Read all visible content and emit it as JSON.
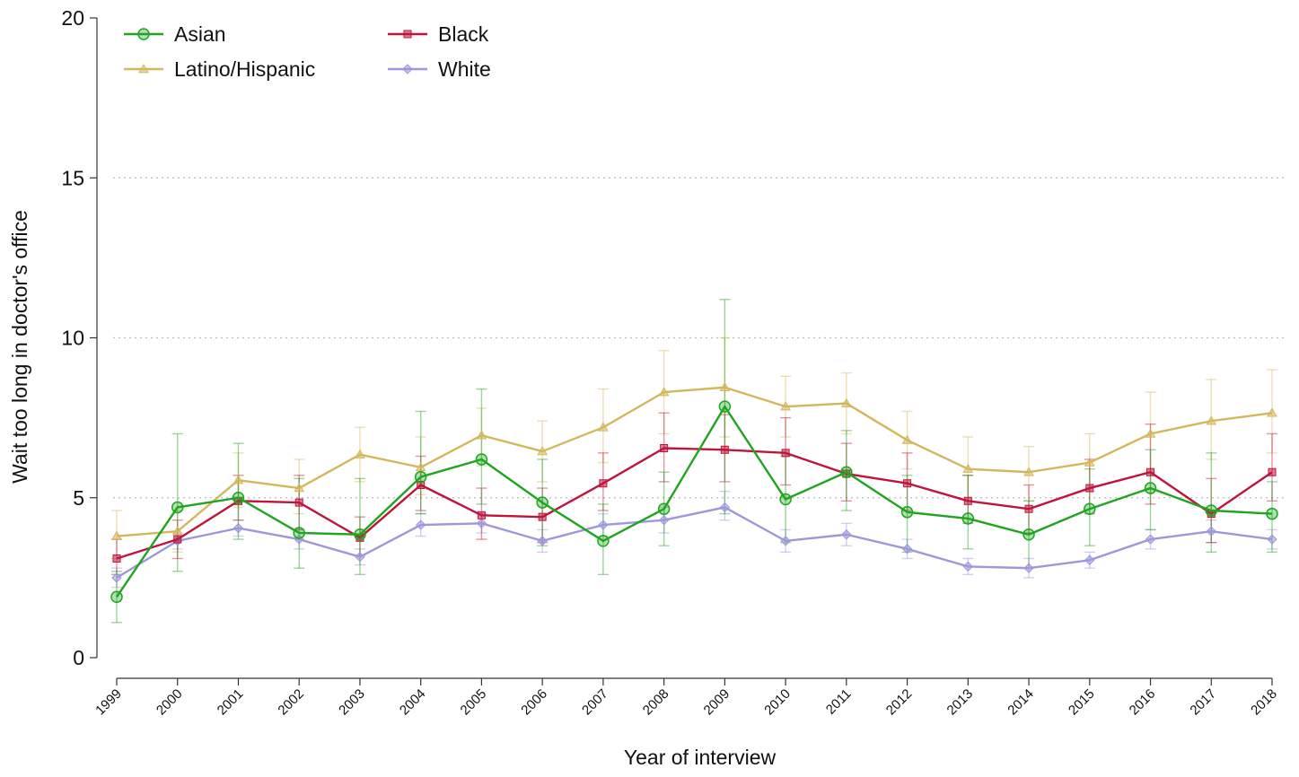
{
  "chart_data": {
    "type": "line",
    "xlabel": "Year of interview",
    "ylabel": "Wait too long in doctor's office",
    "ylim": [
      0,
      20
    ],
    "yticks": [
      0,
      5,
      10,
      15,
      20
    ],
    "grid": "horizontal dotted",
    "legend_position": "top-left",
    "x": [
      "1999",
      "2000",
      "2001",
      "2002",
      "2003",
      "2004",
      "2005",
      "2006",
      "2007",
      "2008",
      "2009",
      "2010",
      "2011",
      "2012",
      "2013",
      "2014",
      "2015",
      "2016",
      "2017",
      "2018"
    ],
    "series": [
      {
        "name": "Asian",
        "color": "#1fa51f",
        "marker": "circle",
        "values": [
          1.9,
          4.7,
          5.0,
          3.9,
          3.85,
          5.65,
          6.2,
          4.85,
          3.65,
          4.65,
          7.85,
          4.95,
          5.8,
          4.55,
          4.35,
          3.85,
          4.65,
          5.3,
          4.6,
          4.5
        ],
        "ci_low": [
          1.1,
          2.7,
          3.7,
          2.8,
          2.6,
          4.5,
          4.8,
          3.5,
          2.6,
          3.5,
          4.5,
          3.6,
          4.6,
          3.3,
          3.4,
          2.8,
          3.5,
          4.0,
          3.3,
          3.3
        ],
        "ci_high": [
          2.7,
          7.0,
          6.7,
          5.6,
          5.6,
          7.7,
          8.4,
          6.2,
          4.8,
          5.8,
          11.2,
          6.3,
          7.1,
          5.7,
          5.7,
          4.9,
          5.9,
          6.5,
          6.4,
          5.5
        ]
      },
      {
        "name": "Black",
        "color": "#c0143c",
        "marker": "square",
        "values": [
          3.1,
          3.7,
          4.9,
          4.85,
          3.75,
          5.4,
          4.45,
          4.4,
          5.45,
          6.55,
          6.5,
          6.4,
          5.75,
          5.45,
          4.9,
          4.65,
          5.3,
          5.8,
          4.5,
          5.8
        ],
        "ci_low": [
          2.6,
          3.1,
          4.3,
          4.0,
          3.2,
          4.6,
          3.7,
          3.6,
          4.6,
          5.5,
          5.5,
          5.4,
          4.9,
          4.6,
          4.2,
          3.9,
          4.5,
          4.8,
          3.6,
          4.9
        ],
        "ci_high": [
          3.7,
          4.3,
          5.7,
          5.7,
          4.4,
          6.3,
          5.3,
          5.3,
          6.4,
          7.65,
          7.6,
          7.5,
          6.7,
          6.4,
          5.7,
          5.4,
          6.2,
          7.3,
          5.6,
          7.0
        ]
      },
      {
        "name": "Latino/Hispanic",
        "color": "#d4b75c",
        "marker": "triangle",
        "values": [
          3.8,
          3.95,
          5.55,
          5.3,
          6.35,
          5.95,
          6.95,
          6.45,
          7.2,
          8.3,
          8.45,
          7.85,
          7.95,
          6.8,
          5.9,
          5.8,
          6.1,
          7.0,
          7.4,
          7.65
        ],
        "ci_low": [
          3.1,
          3.3,
          4.7,
          4.5,
          5.5,
          5.1,
          6.0,
          5.5,
          6.1,
          7.0,
          6.9,
          6.9,
          7.0,
          5.9,
          4.9,
          4.9,
          5.2,
          5.8,
          6.2,
          6.4
        ],
        "ci_high": [
          4.6,
          4.6,
          6.4,
          6.2,
          7.2,
          6.9,
          7.8,
          7.4,
          8.4,
          9.6,
          10.0,
          8.8,
          8.9,
          7.7,
          6.9,
          6.6,
          7.0,
          8.3,
          8.7,
          9.0
        ]
      },
      {
        "name": "White",
        "color": "#9d97dc",
        "marker": "diamond",
        "values": [
          2.5,
          3.65,
          4.05,
          3.7,
          3.15,
          4.15,
          4.2,
          3.65,
          4.15,
          4.3,
          4.7,
          3.65,
          3.85,
          3.4,
          2.85,
          2.8,
          3.05,
          3.7,
          3.95,
          3.7
        ],
        "ci_low": [
          2.2,
          3.4,
          3.8,
          3.4,
          2.9,
          3.8,
          3.9,
          3.3,
          3.8,
          3.9,
          4.3,
          3.3,
          3.5,
          3.1,
          2.6,
          2.5,
          2.8,
          3.4,
          3.6,
          3.4
        ],
        "ci_high": [
          2.8,
          3.9,
          4.3,
          4.0,
          3.4,
          4.5,
          4.5,
          4.0,
          4.5,
          4.7,
          5.2,
          4.0,
          4.2,
          3.7,
          3.1,
          3.1,
          3.3,
          4.0,
          4.3,
          4.0
        ]
      }
    ],
    "legend": [
      {
        "label": "Asian",
        "series": 0
      },
      {
        "label": "Latino/Hispanic",
        "series": 2
      },
      {
        "label": "Black",
        "series": 1
      },
      {
        "label": "White",
        "series": 3
      }
    ]
  }
}
